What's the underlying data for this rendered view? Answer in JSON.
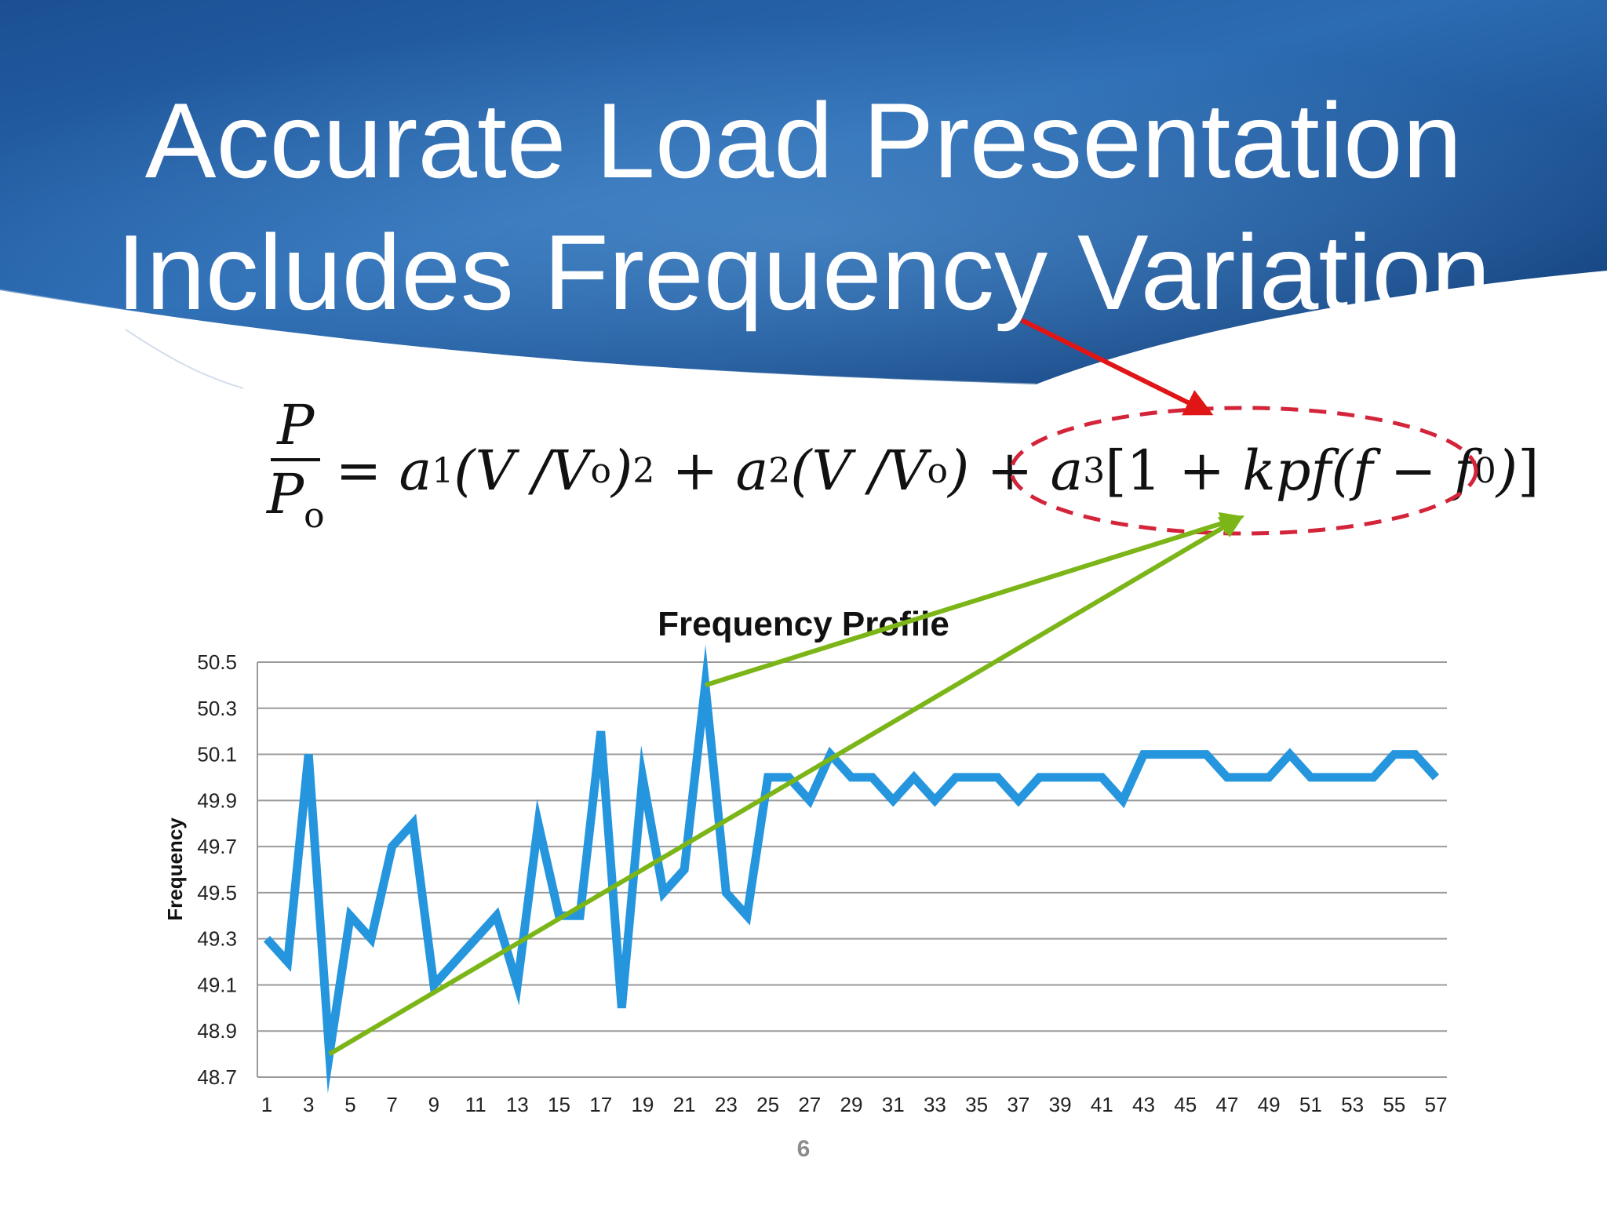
{
  "slide": {
    "title_line1": "Accurate Load Presentation",
    "title_line2": "Includes Frequency Variation",
    "page_number": "6"
  },
  "formula": {
    "lhs_num": "P",
    "lhs_den_base": "P",
    "lhs_den_sub": "o",
    "text_eq": "=",
    "a1": "a",
    "a1_sub": "1",
    "term1": "(V /V",
    "term1_sub": "o",
    "term1_close": ")",
    "term1_sup": "2",
    "plus1": "+",
    "a2": "a",
    "a2_sub": "2",
    "term2": "(V /V",
    "term2_sub": "o",
    "term2_close": ")",
    "plus2": "+",
    "a3": "a",
    "a3_sub": "3",
    "bracket_open": "[",
    "one": "1",
    "plus3": "+",
    "kpf": "kpf",
    "paren_open": "(f",
    "minus": "−",
    "f0": "f",
    "f0_sub": "0",
    "paren_close": ")",
    "bracket_close": "]"
  },
  "colors": {
    "header_dark": "#0f3c78",
    "header_mid": "#2a6fb5",
    "series": "#2596de",
    "trend": "#7cb518",
    "arrow_red": "#e01515",
    "ellipse": "#d4243a",
    "grid": "#9a9a9a",
    "axis_text": "#222222"
  },
  "chart_data": {
    "type": "line",
    "title": "Frequency Profile",
    "xlabel": "",
    "ylabel": "Frequency",
    "ylim": [
      48.7,
      50.5
    ],
    "yticks": [
      "50.5",
      "50.3",
      "50.1",
      "49.9",
      "49.7",
      "49.5",
      "49.3",
      "49.1",
      "48.9",
      "48.7"
    ],
    "xticks": [
      "1",
      "3",
      "5",
      "7",
      "9",
      "11",
      "13",
      "15",
      "17",
      "19",
      "21",
      "23",
      "25",
      "27",
      "29",
      "31",
      "33",
      "35",
      "37",
      "39",
      "41",
      "43",
      "45",
      "47",
      "49",
      "51",
      "53",
      "55",
      "57"
    ],
    "grid": true,
    "legend": "none",
    "series": [
      {
        "name": "Frequency",
        "x": [
          1,
          2,
          3,
          4,
          5,
          6,
          7,
          8,
          9,
          10,
          11,
          12,
          13,
          14,
          15,
          16,
          17,
          18,
          19,
          20,
          21,
          22,
          23,
          24,
          25,
          26,
          27,
          28,
          29,
          30,
          31,
          32,
          33,
          34,
          35,
          36,
          37,
          38,
          39,
          40,
          41,
          42,
          43,
          44,
          45,
          46,
          47,
          48,
          49,
          50,
          51,
          52,
          53,
          54,
          55,
          56,
          57
        ],
        "values": [
          49.3,
          49.2,
          50.1,
          48.8,
          49.4,
          49.3,
          49.7,
          49.8,
          49.1,
          49.2,
          49.3,
          49.4,
          49.1,
          49.8,
          49.4,
          49.4,
          50.2,
          49.0,
          50.0,
          49.5,
          49.6,
          50.4,
          49.5,
          49.4,
          50.0,
          50.0,
          49.9,
          50.1,
          50.0,
          50.0,
          49.9,
          50.0,
          49.9,
          50.0,
          50.0,
          50.0,
          49.9,
          50.0,
          50.0,
          50.0,
          50.0,
          49.9,
          50.1,
          50.1,
          50.1,
          50.1,
          50.0,
          50.0,
          50.0,
          50.1,
          50.0,
          50.0,
          50.0,
          50.0,
          50.1,
          50.1,
          50.0
        ]
      }
    ],
    "annotations": [
      {
        "type": "trend-arrow",
        "from_x": 4,
        "from_y": 48.8,
        "to": "formula-frequency-term"
      },
      {
        "type": "trend-arrow",
        "from_x": 22,
        "from_y": 50.4,
        "to": "formula-frequency-term"
      }
    ]
  }
}
